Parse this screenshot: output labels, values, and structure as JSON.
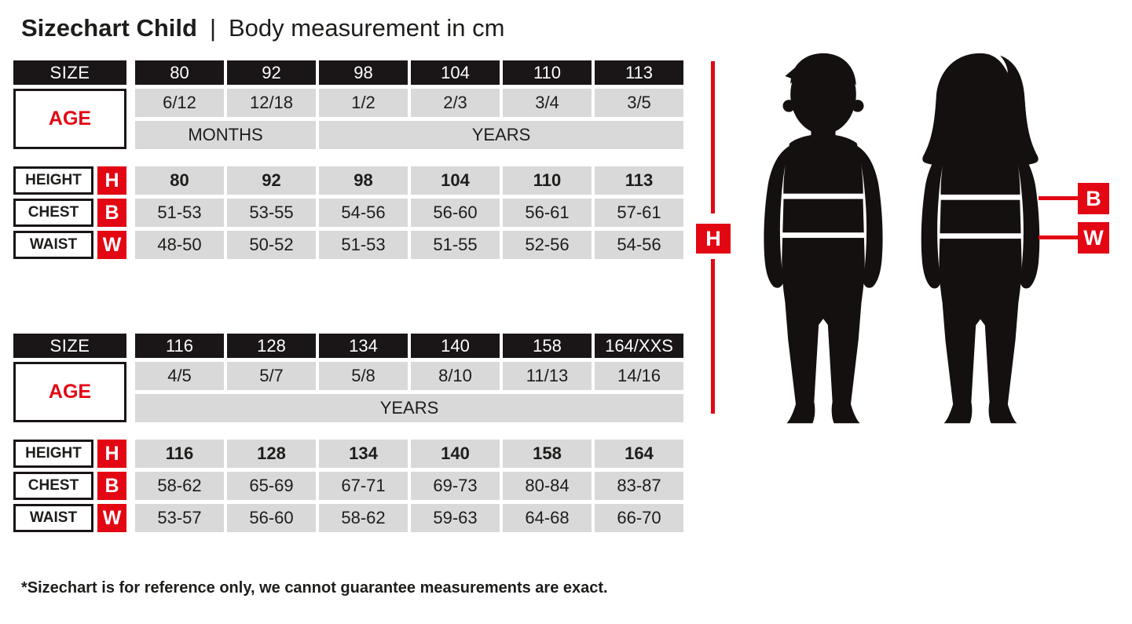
{
  "header": {
    "title_bold": "Sizechart Child",
    "separator": "|",
    "title_regular": "Body measurement in cm"
  },
  "labels": {
    "size": "SIZE",
    "age": "AGE",
    "height": "HEIGHT",
    "chest": "CHEST",
    "waist": "WAIST",
    "h": "H",
    "b": "B",
    "w": "W"
  },
  "tables": [
    {
      "sizes": [
        "80",
        "92",
        "98",
        "104",
        "110",
        "113"
      ],
      "ages": [
        "6/12",
        "12/18",
        "1/2",
        "2/3",
        "3/4",
        "3/5"
      ],
      "age_units": [
        {
          "label": "MONTHS",
          "cols": 2
        },
        {
          "label": "YEARS",
          "cols": 4
        }
      ],
      "height": [
        "80",
        "92",
        "98",
        "104",
        "110",
        "113"
      ],
      "chest": [
        "51-53",
        "53-55",
        "54-56",
        "56-60",
        "56-61",
        "57-61"
      ],
      "waist": [
        "48-50",
        "50-52",
        "51-53",
        "51-55",
        "52-56",
        "54-56"
      ]
    },
    {
      "sizes": [
        "116",
        "128",
        "134",
        "140",
        "158",
        "164/XXS"
      ],
      "ages": [
        "4/5",
        "5/7",
        "5/8",
        "8/10",
        "11/13",
        "14/16"
      ],
      "age_units": [
        {
          "label": "YEARS",
          "cols": 6
        }
      ],
      "height": [
        "116",
        "128",
        "134",
        "140",
        "158",
        "164"
      ],
      "chest": [
        "58-62",
        "65-69",
        "67-71",
        "69-73",
        "80-84",
        "83-87"
      ],
      "waist": [
        "53-57",
        "56-60",
        "58-62",
        "59-63",
        "64-68",
        "66-70"
      ]
    }
  ],
  "figure": {
    "height_label": "H",
    "chest_label": "B",
    "waist_label": "W"
  },
  "colors": {
    "accent_red": "#e30613",
    "header_black": "#1a1516",
    "cell_gray": "#d9d9d9"
  },
  "footnote": "*Sizechart is for reference only, we cannot guarantee measurements are exact."
}
